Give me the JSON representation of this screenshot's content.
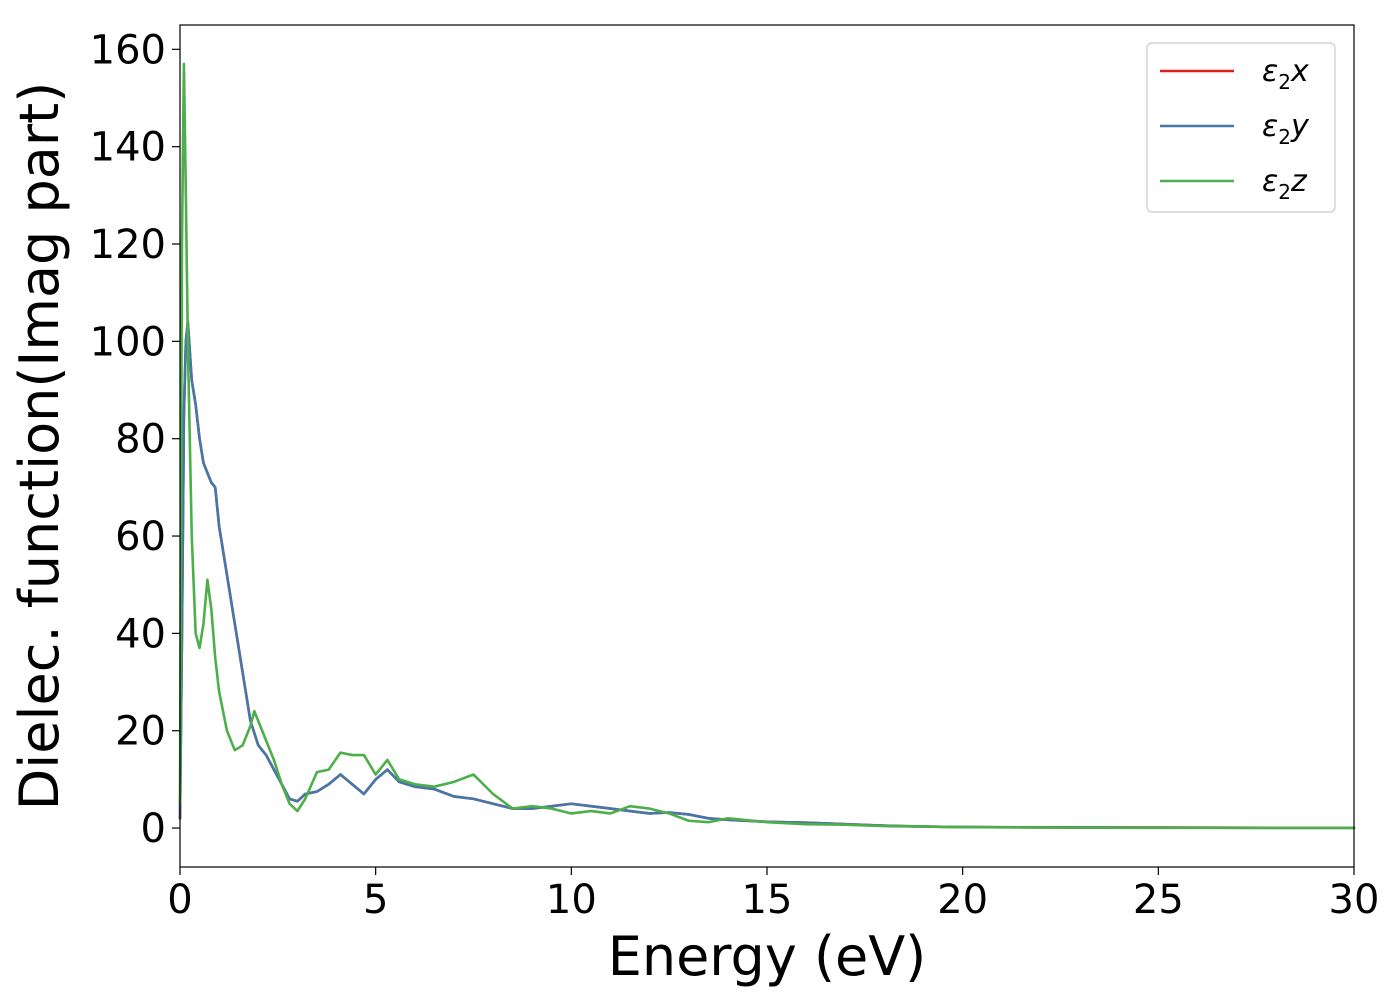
{
  "chart_data": {
    "type": "line",
    "xlabel": "Energy (eV)",
    "ylabel": "Dielec. function(Imag part)",
    "xlim": [
      0,
      30
    ],
    "ylim": [
      -8,
      165
    ],
    "xticks": [
      0,
      5,
      10,
      15,
      20,
      25,
      30
    ],
    "yticks": [
      0,
      20,
      40,
      60,
      80,
      100,
      120,
      140,
      160
    ],
    "grid": false,
    "legend_position": "top-right",
    "series": [
      {
        "name": "ε₂x",
        "legend_base": "ε",
        "legend_sub": "2",
        "legend_tail": "x",
        "color": "#e41a1c",
        "x": [
          0,
          0.05,
          0.1,
          0.15,
          0.2,
          0.3,
          0.4,
          0.5,
          0.6,
          0.7,
          0.8,
          0.9,
          1.0,
          1.2,
          1.4,
          1.6,
          1.8,
          2.0,
          2.2,
          2.4,
          2.6,
          2.8,
          3.0,
          3.2,
          3.5,
          3.8,
          4.1,
          4.4,
          4.7,
          5.0,
          5.3,
          5.6,
          6.0,
          6.5,
          7.0,
          7.5,
          8.0,
          8.5,
          9.0,
          9.5,
          10.0,
          10.5,
          11.0,
          11.5,
          12.0,
          12.5,
          13.0,
          13.5,
          14.0,
          15.0,
          16.0,
          17.0,
          18.0,
          19.0,
          20.0,
          22.0,
          25.0,
          28.0,
          30.0
        ],
        "values": [
          2,
          40,
          85,
          100,
          104,
          92,
          87,
          80,
          75,
          73,
          71,
          70,
          62,
          52,
          42,
          32,
          22,
          17,
          15,
          12,
          9,
          6,
          5.5,
          7,
          7.5,
          9,
          11,
          9,
          7,
          10,
          12,
          9.5,
          8.5,
          8,
          6.5,
          6,
          5,
          4,
          4,
          4.5,
          5,
          4.5,
          4,
          3.5,
          3,
          3.2,
          2.8,
          2,
          1.7,
          1.3,
          1.1,
          0.8,
          0.5,
          0.3,
          0.2,
          0.15,
          0.1,
          0.05,
          0.05
        ]
      },
      {
        "name": "ε₂y",
        "legend_base": "ε",
        "legend_sub": "2",
        "legend_tail": "y",
        "color": "#4477aa",
        "x": [
          0,
          0.05,
          0.1,
          0.15,
          0.2,
          0.3,
          0.4,
          0.5,
          0.6,
          0.7,
          0.8,
          0.9,
          1.0,
          1.2,
          1.4,
          1.6,
          1.8,
          2.0,
          2.2,
          2.4,
          2.6,
          2.8,
          3.0,
          3.2,
          3.5,
          3.8,
          4.1,
          4.4,
          4.7,
          5.0,
          5.3,
          5.6,
          6.0,
          6.5,
          7.0,
          7.5,
          8.0,
          8.5,
          9.0,
          9.5,
          10.0,
          10.5,
          11.0,
          11.5,
          12.0,
          12.5,
          13.0,
          13.5,
          14.0,
          15.0,
          16.0,
          17.0,
          18.0,
          19.0,
          20.0,
          22.0,
          25.0,
          28.0,
          30.0
        ],
        "values": [
          2,
          40,
          85,
          100,
          104,
          92,
          87,
          80,
          75,
          73,
          71,
          70,
          62,
          52,
          42,
          32,
          22,
          17,
          15,
          12,
          9,
          6,
          5.5,
          7,
          7.5,
          9,
          11,
          9,
          7,
          10,
          12,
          9.5,
          8.5,
          8,
          6.5,
          6,
          5,
          4,
          4,
          4.5,
          5,
          4.5,
          4,
          3.5,
          3,
          3.2,
          2.8,
          2,
          1.7,
          1.3,
          1.1,
          0.8,
          0.5,
          0.3,
          0.2,
          0.15,
          0.1,
          0.05,
          0.05
        ]
      },
      {
        "name": "ε₂z",
        "legend_base": "ε",
        "legend_sub": "2",
        "legend_tail": "z",
        "color": "#4daf4a",
        "x": [
          0,
          0.05,
          0.1,
          0.15,
          0.2,
          0.25,
          0.3,
          0.4,
          0.5,
          0.6,
          0.7,
          0.8,
          0.9,
          1.0,
          1.2,
          1.4,
          1.6,
          1.8,
          1.9,
          2.0,
          2.2,
          2.4,
          2.6,
          2.8,
          3.0,
          3.2,
          3.5,
          3.8,
          4.1,
          4.4,
          4.7,
          5.0,
          5.3,
          5.6,
          6.0,
          6.5,
          7.0,
          7.5,
          8.0,
          8.5,
          9.0,
          9.5,
          10.0,
          10.5,
          11.0,
          11.5,
          12.0,
          12.5,
          13.0,
          13.5,
          14.0,
          15.0,
          16.0,
          17.0,
          18.0,
          19.0,
          20.0,
          22.0,
          25.0,
          28.0,
          30.0
        ],
        "values": [
          5,
          120,
          157,
          130,
          100,
          80,
          60,
          40,
          37,
          42,
          51,
          45,
          35,
          28,
          20,
          16,
          17,
          21,
          24,
          22,
          18,
          14,
          9,
          5,
          3.5,
          6,
          11.5,
          12,
          15.5,
          15,
          15,
          11,
          14,
          10,
          9,
          8.5,
          9.5,
          11,
          7,
          4,
          4.5,
          4,
          3,
          3.5,
          3,
          4.5,
          4,
          3,
          1.5,
          1.2,
          2,
          1.2,
          0.8,
          0.7,
          0.4,
          0.3,
          0.2,
          0.1,
          0.05,
          0.05,
          0.05
        ]
      }
    ]
  }
}
